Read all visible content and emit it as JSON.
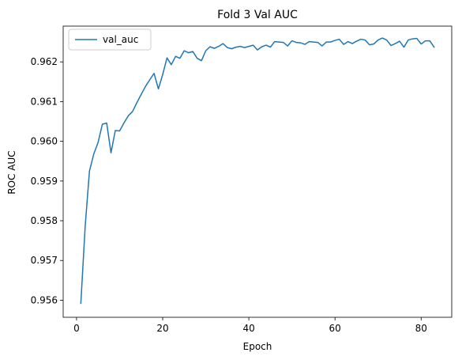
{
  "chart_data": {
    "type": "line",
    "title": "Fold 3 Val AUC",
    "xlabel": "Epoch",
    "ylabel": "ROC AUC",
    "xlim": [
      -3.1,
      87.1
    ],
    "ylim": [
      0.95557,
      0.9629
    ],
    "xticks": [
      0,
      20,
      40,
      60,
      80
    ],
    "yticks": [
      0.956,
      0.957,
      0.958,
      0.959,
      0.96,
      0.961,
      0.962
    ],
    "ytick_labels": [
      "0.956",
      "0.957",
      "0.958",
      "0.959",
      "0.960",
      "0.961",
      "0.962"
    ],
    "grid": false,
    "legend": "upper-left",
    "series": [
      {
        "name": "val_auc",
        "color": "#1f77b4",
        "x": [
          1,
          2,
          3,
          4,
          5,
          6,
          7,
          8,
          9,
          10,
          11,
          12,
          13,
          14,
          15,
          16,
          17,
          18,
          19,
          20,
          21,
          22,
          23,
          24,
          25,
          26,
          27,
          28,
          29,
          30,
          31,
          32,
          33,
          34,
          35,
          36,
          37,
          38,
          39,
          40,
          41,
          42,
          43,
          44,
          45,
          46,
          47,
          48,
          49,
          50,
          51,
          52,
          53,
          54,
          55,
          56,
          57,
          58,
          59,
          60,
          61,
          62,
          63,
          64,
          65,
          66,
          67,
          68,
          69,
          70,
          71,
          72,
          73,
          74,
          75,
          76,
          77,
          78,
          79,
          80,
          81,
          82,
          83
        ],
        "values": [
          0.95592,
          0.95785,
          0.95925,
          0.95968,
          0.95997,
          0.96043,
          0.96046,
          0.95971,
          0.96027,
          0.96026,
          0.96046,
          0.96064,
          0.96075,
          0.96097,
          0.96118,
          0.96138,
          0.96155,
          0.96171,
          0.96132,
          0.96168,
          0.9621,
          0.96193,
          0.96214,
          0.96209,
          0.96228,
          0.96223,
          0.96226,
          0.96209,
          0.96203,
          0.96228,
          0.96238,
          0.96234,
          0.96239,
          0.96246,
          0.96236,
          0.96233,
          0.96237,
          0.96239,
          0.96236,
          0.96239,
          0.96242,
          0.9623,
          0.96238,
          0.96242,
          0.96237,
          0.96251,
          0.9625,
          0.96249,
          0.9624,
          0.96253,
          0.96249,
          0.96248,
          0.96244,
          0.96251,
          0.9625,
          0.96249,
          0.9624,
          0.9625,
          0.9625,
          0.96254,
          0.96257,
          0.96244,
          0.96251,
          0.96246,
          0.96252,
          0.96257,
          0.96255,
          0.96243,
          0.96245,
          0.96255,
          0.9626,
          0.96255,
          0.96241,
          0.96246,
          0.96252,
          0.96237,
          0.96255,
          0.96258,
          0.96259,
          0.96245,
          0.96253,
          0.96253,
          0.96237
        ]
      }
    ]
  }
}
